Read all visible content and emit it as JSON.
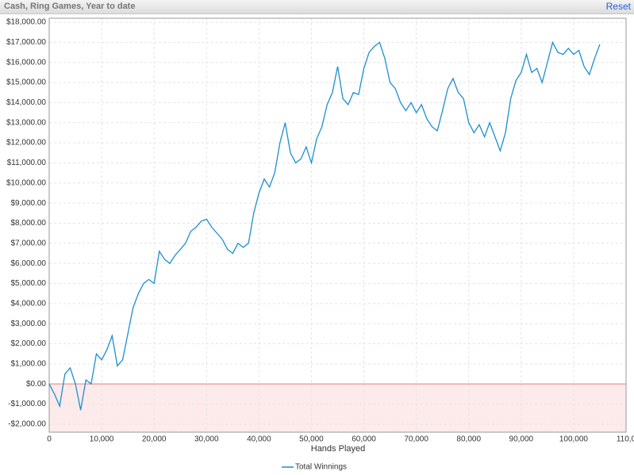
{
  "header": {
    "title": "Cash, Ring Games, Year to date",
    "reset": "Reset"
  },
  "chart_data": {
    "type": "line",
    "x_label": "Hands Played",
    "grid": true,
    "negative_shade": true,
    "xlim": [
      0,
      110000
    ],
    "ylim": [
      -2400,
      18200
    ],
    "xticks": [
      0,
      {
        "value": 10000,
        "label": "10,000"
      },
      {
        "value": 20000,
        "label": "20,000"
      },
      {
        "value": 30000,
        "label": "30,000"
      },
      {
        "value": 40000,
        "label": "40,000"
      },
      {
        "value": 50000,
        "label": "50,000"
      },
      {
        "value": 60000,
        "label": "60,000"
      },
      {
        "value": 70000,
        "label": "70,000"
      },
      {
        "value": 80000,
        "label": "80,000"
      },
      {
        "value": 90000,
        "label": "90,000"
      },
      {
        "value": 100000,
        "label": "100,000"
      },
      {
        "value": 110000,
        "label": "110,0"
      }
    ],
    "yticks": [
      {
        "value": -2000,
        "label": "-$2,000.00"
      },
      {
        "value": -1000,
        "label": "-$1,000.00"
      },
      {
        "value": 0,
        "label": "$0.00"
      },
      {
        "value": 1000,
        "label": "$1,000.00"
      },
      {
        "value": 2000,
        "label": "$2,000.00"
      },
      {
        "value": 3000,
        "label": "$3,000.00"
      },
      {
        "value": 4000,
        "label": "$4,000.00"
      },
      {
        "value": 5000,
        "label": "$5,000.00"
      },
      {
        "value": 6000,
        "label": "$6,000.00"
      },
      {
        "value": 7000,
        "label": "$7,000.00"
      },
      {
        "value": 8000,
        "label": "$8,000.00"
      },
      {
        "value": 9000,
        "label": "$9,000.00"
      },
      {
        "value": 10000,
        "label": "$10,000.00"
      },
      {
        "value": 11000,
        "label": "$11,000.00"
      },
      {
        "value": 12000,
        "label": "$12,000.00"
      },
      {
        "value": 13000,
        "label": "$13,000.00"
      },
      {
        "value": 14000,
        "label": "$14,000.00"
      },
      {
        "value": 15000,
        "label": "$15,000.00"
      },
      {
        "value": 16000,
        "label": "$16,000.00"
      },
      {
        "value": 17000,
        "label": "$17,000.00"
      },
      {
        "value": 18000,
        "label": "$18,000.00"
      }
    ],
    "x": [
      0,
      1000,
      2000,
      3000,
      4000,
      5000,
      6000,
      7000,
      8000,
      9000,
      10000,
      11000,
      12000,
      13000,
      14000,
      15000,
      16000,
      17000,
      18000,
      19000,
      20000,
      21000,
      22000,
      23000,
      24000,
      25000,
      26000,
      27000,
      28000,
      29000,
      30000,
      31000,
      32000,
      33000,
      34000,
      35000,
      36000,
      37000,
      38000,
      39000,
      40000,
      41000,
      42000,
      43000,
      44000,
      45000,
      46000,
      47000,
      48000,
      49000,
      50000,
      51000,
      52000,
      53000,
      54000,
      55000,
      56000,
      57000,
      58000,
      59000,
      60000,
      61000,
      62000,
      63000,
      64000,
      65000,
      66000,
      67000,
      68000,
      69000,
      70000,
      71000,
      72000,
      73000,
      74000,
      75000,
      76000,
      77000,
      78000,
      79000,
      80000,
      81000,
      82000,
      83000,
      84000,
      85000,
      86000,
      87000,
      88000,
      89000,
      90000,
      91000,
      92000,
      93000,
      94000,
      95000,
      96000,
      97000,
      98000,
      99000,
      100000,
      101000,
      102000,
      103000,
      104000,
      105000
    ],
    "series": [
      {
        "name": "Total Winnings",
        "color": "#1b8fd0",
        "values": [
          0,
          -500,
          -1100,
          500,
          800,
          0,
          -1300,
          200,
          0,
          1500,
          1200,
          1700,
          2400,
          900,
          1200,
          2500,
          3800,
          4500,
          5000,
          5200,
          5000,
          6600,
          6200,
          6000,
          6400,
          6700,
          7000,
          7600,
          7800,
          8100,
          8200,
          7800,
          7500,
          7200,
          6700,
          6500,
          7000,
          6800,
          7000,
          8500,
          9500,
          10200,
          9800,
          10500,
          12000,
          13000,
          11500,
          11000,
          11200,
          11800,
          11000,
          12200,
          12800,
          13900,
          14500,
          15800,
          14200,
          13900,
          14500,
          14400,
          15700,
          16500,
          16800,
          17000,
          16200,
          15000,
          14700,
          14000,
          13600,
          14000,
          13500,
          13900,
          13200,
          12800,
          12600,
          13600,
          14700,
          15200,
          14500,
          14200,
          13000,
          12500,
          12900,
          12300,
          13000,
          12300,
          11600,
          12500,
          14200,
          15100,
          15500,
          16400,
          15500,
          15700,
          15000,
          16000,
          17000,
          16500,
          16400,
          16700,
          16400,
          16600,
          15800,
          15400,
          16200,
          16900
        ]
      }
    ]
  }
}
